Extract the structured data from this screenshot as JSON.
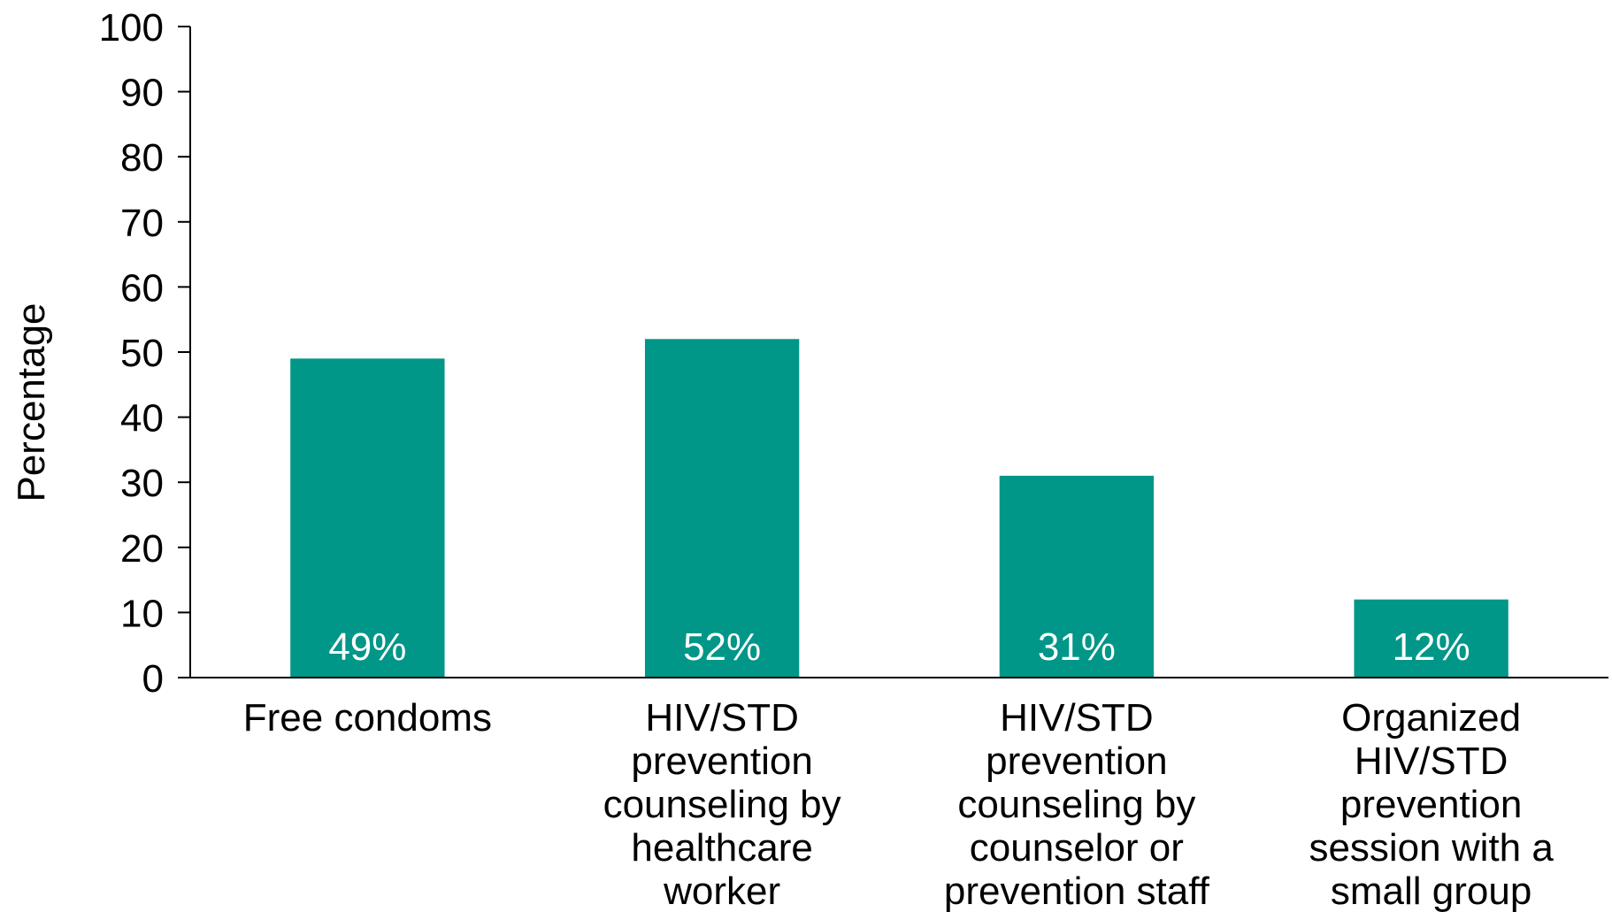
{
  "chart_data": {
    "type": "bar",
    "title": "",
    "xlabel": "",
    "ylabel": "Percentage",
    "ylim": [
      0,
      100
    ],
    "yticks": [
      0,
      10,
      20,
      30,
      40,
      50,
      60,
      70,
      80,
      90,
      100
    ],
    "categories": [
      [
        "Free condoms"
      ],
      [
        "HIV/STD",
        "prevention",
        "counseling by",
        "healthcare",
        "worker"
      ],
      [
        "HIV/STD",
        "prevention",
        "counseling by",
        "counselor or",
        "prevention staff"
      ],
      [
        "Organized",
        "HIV/STD",
        "prevention",
        "session with a",
        "small group"
      ]
    ],
    "values": [
      49,
      52,
      31,
      12
    ],
    "data_labels": [
      "49%",
      "52%",
      "31%",
      "12%"
    ],
    "bar_color": "#009688",
    "grid": false,
    "legend": "none"
  }
}
